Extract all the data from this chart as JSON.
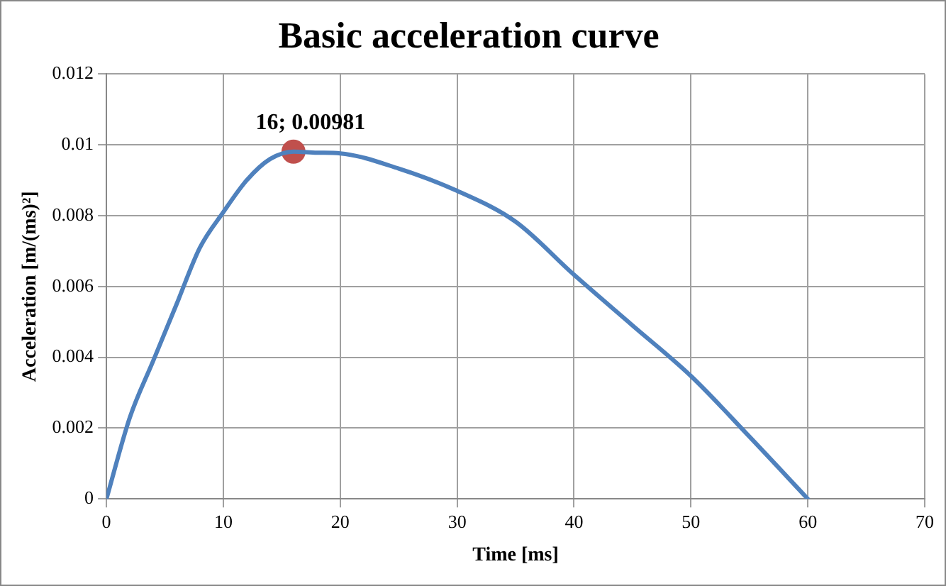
{
  "chart_data": {
    "type": "line",
    "title": "Basic acceleration curve",
    "xlabel": "Time [ms]",
    "ylabel": "Acceleration [m/(ms)²]",
    "xlim": [
      0,
      70
    ],
    "xticks": [
      0,
      10,
      20,
      30,
      40,
      50,
      60,
      70
    ],
    "ylim": [
      0,
      0.012
    ],
    "yticks": [
      0,
      0.002,
      0.004,
      0.006,
      0.008,
      0.01,
      0.012
    ],
    "grid": true,
    "legend": false,
    "series": [
      {
        "color": "#4f81bd",
        "marker": "none",
        "x": [
          0,
          2,
          4,
          6,
          8,
          10,
          12,
          14,
          16,
          18,
          20,
          25,
          30,
          35,
          40,
          45,
          50,
          55,
          60
        ],
        "values": [
          0,
          0.0023,
          0.0039,
          0.0055,
          0.0071,
          0.0081,
          0.009,
          0.0096,
          0.00981,
          0.00978,
          0.00976,
          0.00933,
          0.0087,
          0.00783,
          0.00633,
          0.0049,
          0.00347,
          0.00176,
          0
        ]
      },
      {
        "type": "scatter",
        "color": "#c0504d",
        "marker": "circle",
        "x": [
          16
        ],
        "values": [
          0.00981
        ],
        "value_labels": [
          "16; 0.00981"
        ]
      }
    ]
  }
}
